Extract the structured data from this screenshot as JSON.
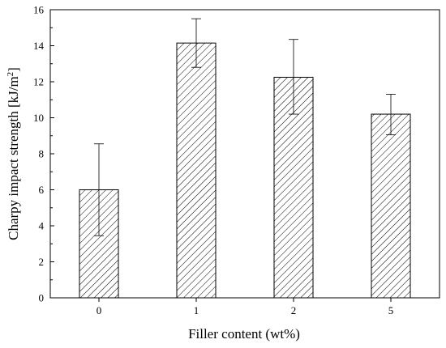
{
  "chart_data": {
    "type": "bar",
    "categories": [
      "0",
      "1",
      "2",
      "5"
    ],
    "values": [
      6.0,
      14.15,
      12.25,
      10.2
    ],
    "error_bars": {
      "upper": [
        8.55,
        15.5,
        14.35,
        11.3
      ],
      "lower": [
        3.45,
        12.8,
        10.2,
        9.05
      ]
    },
    "xlabel": "Filler content (wt%)",
    "ylabel": "Charpy impact strength [kJ/m2]",
    "ylim": [
      0,
      16
    ],
    "yticks": [
      0,
      2,
      4,
      6,
      8,
      10,
      12,
      14,
      16
    ],
    "bar_fill": "hatched",
    "grid": false,
    "colors": {
      "bar_stroke": "#000000",
      "hatch": "#000000",
      "background": "#ffffff"
    }
  }
}
